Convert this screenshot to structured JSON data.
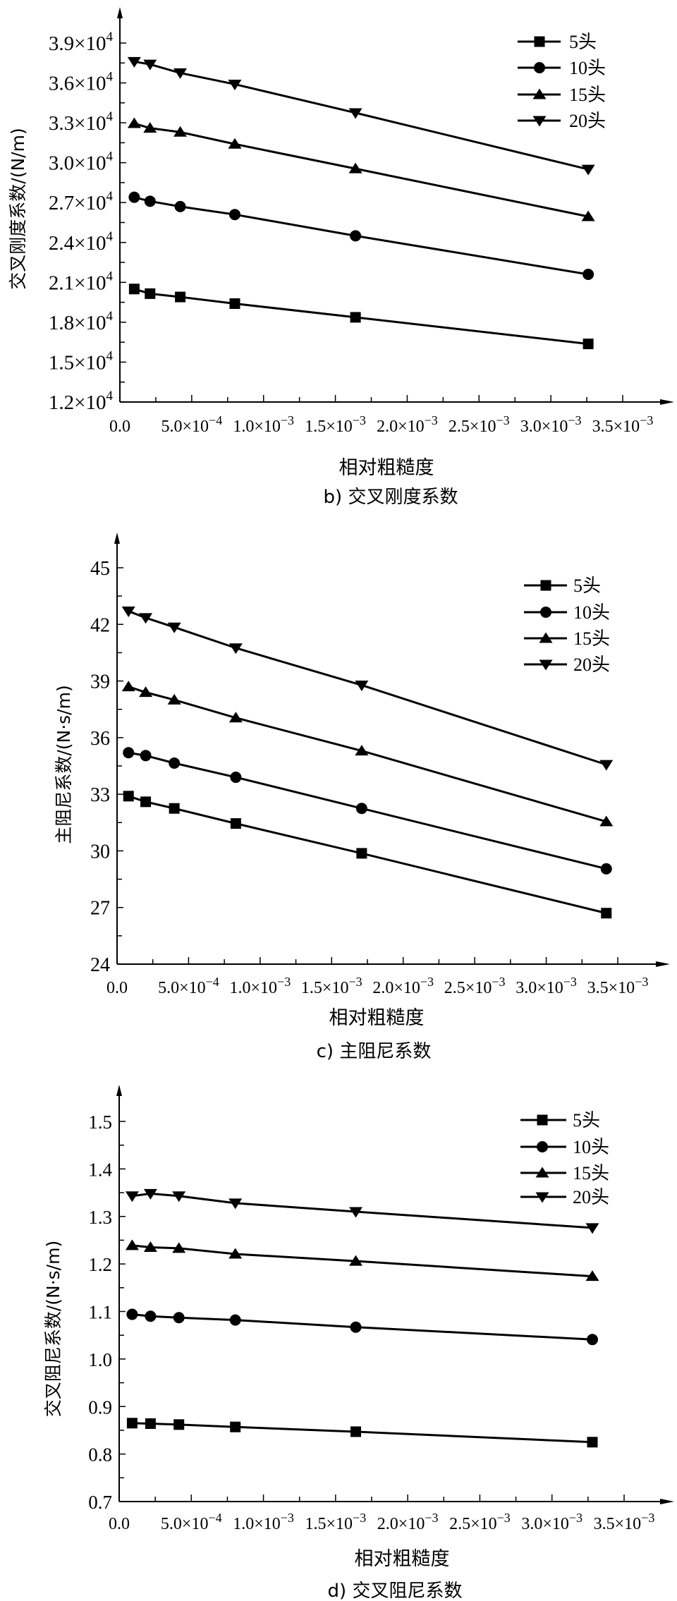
{
  "chart_data": [
    {
      "type": "line",
      "title": "b) 交叉刚度系数",
      "xlabel": "相对粗糙度",
      "ylabel": "交叉刚度系数/(N/m)",
      "xlim": [
        0,
        0.0035
      ],
      "ylim": [
        12000,
        39000
      ],
      "grid": false,
      "legend_position": "top-right",
      "xticks": [
        {
          "value": 0,
          "base": "0.0",
          "exp": ""
        },
        {
          "value": 0.0005,
          "base": "5.0×10",
          "exp": "−4"
        },
        {
          "value": 0.001,
          "base": "1.0×10",
          "exp": "−3"
        },
        {
          "value": 0.0015,
          "base": "1.5×10",
          "exp": "−3"
        },
        {
          "value": 0.002,
          "base": "2.0×10",
          "exp": "−3"
        },
        {
          "value": 0.0025,
          "base": "2.5×10",
          "exp": "−3"
        },
        {
          "value": 0.003,
          "base": "3.0×10",
          "exp": "−3"
        },
        {
          "value": 0.0035,
          "base": "3.5×10",
          "exp": "−3"
        }
      ],
      "yticks": [
        {
          "value": 12000,
          "base": "1.2×10",
          "exp": "4"
        },
        {
          "value": 15000,
          "base": "1.5×10",
          "exp": "4"
        },
        {
          "value": 18000,
          "base": "1.8×10",
          "exp": "4"
        },
        {
          "value": 21000,
          "base": "2.1×10",
          "exp": "4"
        },
        {
          "value": 24000,
          "base": "2.4×10",
          "exp": "4"
        },
        {
          "value": 27000,
          "base": "2.7×10",
          "exp": "4"
        },
        {
          "value": 30000,
          "base": "3.0×10",
          "exp": "4"
        },
        {
          "value": 33000,
          "base": "3.3×10",
          "exp": "4"
        },
        {
          "value": 36000,
          "base": "3.6×10",
          "exp": "4"
        },
        {
          "value": 39000,
          "base": "3.9×10",
          "exp": "4"
        }
      ],
      "x": [
        0.0001,
        0.00021,
        0.00042,
        0.0008,
        0.00164,
        0.00326
      ],
      "series": [
        {
          "name": "5头",
          "marker": "square",
          "values": [
            20500,
            20150,
            19900,
            19400,
            18370,
            16370
          ]
        },
        {
          "name": "10头",
          "marker": "circle",
          "values": [
            27400,
            27100,
            26700,
            26100,
            24500,
            21600
          ]
        },
        {
          "name": "15头",
          "marker": "triangle-up",
          "values": [
            32950,
            32600,
            32300,
            31400,
            29550,
            25950
          ]
        },
        {
          "name": "20头",
          "marker": "triangle-down",
          "values": [
            37600,
            37400,
            36750,
            35900,
            33750,
            29500
          ]
        }
      ]
    },
    {
      "type": "line",
      "title": "c) 主阻尼系数",
      "xlabel": "相对粗糙度",
      "ylabel": "主阻尼系数/(N·s/m)",
      "xlim": [
        0,
        0.0035
      ],
      "ylim": [
        24,
        45
      ],
      "grid": false,
      "legend_position": "top-right",
      "xticks": [
        {
          "value": 0,
          "base": "0.0",
          "exp": ""
        },
        {
          "value": 0.0005,
          "base": "5.0×10",
          "exp": "−4"
        },
        {
          "value": 0.001,
          "base": "1.0×10",
          "exp": "−3"
        },
        {
          "value": 0.0015,
          "base": "1.5×10",
          "exp": "−3"
        },
        {
          "value": 0.002,
          "base": "2.0×10",
          "exp": "−3"
        },
        {
          "value": 0.0025,
          "base": "2.5×10",
          "exp": "−3"
        },
        {
          "value": 0.003,
          "base": "3.0×10",
          "exp": "−3"
        },
        {
          "value": 0.0035,
          "base": "3.5×10",
          "exp": "−3"
        }
      ],
      "yticks": [
        {
          "value": 24,
          "base": "24",
          "exp": ""
        },
        {
          "value": 27,
          "base": "27",
          "exp": ""
        },
        {
          "value": 30,
          "base": "30",
          "exp": ""
        },
        {
          "value": 33,
          "base": "33",
          "exp": ""
        },
        {
          "value": 36,
          "base": "36",
          "exp": ""
        },
        {
          "value": 39,
          "base": "39",
          "exp": ""
        },
        {
          "value": 42,
          "base": "42",
          "exp": ""
        },
        {
          "value": 45,
          "base": "45",
          "exp": ""
        }
      ],
      "x": [
        8e-05,
        0.0002,
        0.0004,
        0.00083,
        0.00171,
        0.00342
      ],
      "series": [
        {
          "name": "5头",
          "marker": "square",
          "values": [
            32.9,
            32.6,
            32.25,
            31.45,
            29.87,
            26.7
          ]
        },
        {
          "name": "10头",
          "marker": "circle",
          "values": [
            35.2,
            35.05,
            34.65,
            33.9,
            32.25,
            29.05
          ]
        },
        {
          "name": "15头",
          "marker": "triangle-up",
          "values": [
            38.7,
            38.4,
            38.0,
            37.05,
            35.3,
            31.55
          ]
        },
        {
          "name": "20头",
          "marker": "triangle-down",
          "values": [
            42.7,
            42.35,
            41.85,
            40.75,
            38.78,
            34.57
          ]
        }
      ]
    },
    {
      "type": "line",
      "title": "d) 交叉阻尼系数",
      "xlabel": "相对粗糙度",
      "ylabel": "交叉阻尼系数/(N·s/m)",
      "xlim": [
        0,
        0.0035
      ],
      "ylim": [
        0.7,
        1.5
      ],
      "grid": false,
      "legend_position": "top-right",
      "xticks": [
        {
          "value": 0,
          "base": "0.0",
          "exp": ""
        },
        {
          "value": 0.0005,
          "base": "5.0×10",
          "exp": "−4"
        },
        {
          "value": 0.001,
          "base": "1.0×10",
          "exp": "−3"
        },
        {
          "value": 0.0015,
          "base": "1.5×10",
          "exp": "−3"
        },
        {
          "value": 0.002,
          "base": "2.0×10",
          "exp": "−3"
        },
        {
          "value": 0.0025,
          "base": "2.5×10",
          "exp": "−3"
        },
        {
          "value": 0.003,
          "base": "3.0×10",
          "exp": "−3"
        },
        {
          "value": 0.0035,
          "base": "3.5×10",
          "exp": "−3"
        }
      ],
      "yticks": [
        {
          "value": 0.7,
          "base": "0.7",
          "exp": ""
        },
        {
          "value": 0.8,
          "base": "0.8",
          "exp": ""
        },
        {
          "value": 0.9,
          "base": "0.9",
          "exp": ""
        },
        {
          "value": 1.0,
          "base": "1.0",
          "exp": ""
        },
        {
          "value": 1.1,
          "base": "1.1",
          "exp": ""
        },
        {
          "value": 1.2,
          "base": "1.2",
          "exp": ""
        },
        {
          "value": 1.3,
          "base": "1.3",
          "exp": ""
        },
        {
          "value": 1.4,
          "base": "1.4",
          "exp": ""
        },
        {
          "value": 1.5,
          "base": "1.5",
          "exp": ""
        }
      ],
      "x": [
        9e-05,
        0.000217,
        0.000414,
        0.000805,
        0.00164,
        0.00328
      ],
      "series": [
        {
          "name": "5头",
          "marker": "square",
          "values": [
            0.865,
            0.864,
            0.862,
            0.857,
            0.847,
            0.825
          ]
        },
        {
          "name": "10头",
          "marker": "circle",
          "values": [
            1.094,
            1.09,
            1.087,
            1.082,
            1.067,
            1.041
          ]
        },
        {
          "name": "15头",
          "marker": "triangle-up",
          "values": [
            1.239,
            1.235,
            1.233,
            1.221,
            1.206,
            1.174
          ]
        },
        {
          "name": "20头",
          "marker": "triangle-down",
          "values": [
            1.343,
            1.348,
            1.343,
            1.328,
            1.31,
            1.276
          ]
        }
      ]
    }
  ]
}
